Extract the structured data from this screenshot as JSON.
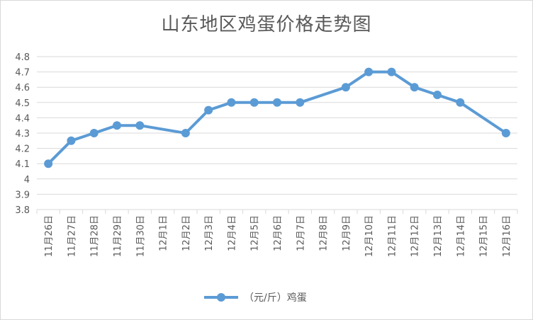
{
  "chart_data": {
    "type": "line",
    "title": "山东地区鸡蛋价格走势图",
    "categories": [
      "11月26日",
      "11月27日",
      "11月28日",
      "11月29日",
      "11月30日",
      "12月1日",
      "12月2日",
      "12月3日",
      "12月4日",
      "12月5日",
      "12月6日",
      "12月7日",
      "12月8日",
      "12月9日",
      "12月10日",
      "12月11日",
      "12月12日",
      "12月13日",
      "12月14日",
      "12月15日",
      "12月16日"
    ],
    "series": [
      {
        "name": "（元/斤）鸡蛋",
        "color": "#5b9bd5",
        "values": [
          4.1,
          4.25,
          4.3,
          4.35,
          4.35,
          null,
          4.3,
          4.45,
          4.5,
          4.5,
          4.5,
          4.5,
          null,
          4.6,
          4.7,
          4.7,
          4.6,
          4.55,
          4.5,
          null,
          4.3
        ]
      }
    ],
    "y_ticks": [
      "3.8",
      "3.9",
      "4",
      "4.1",
      "4.2",
      "4.3",
      "4.4",
      "4.5",
      "4.6",
      "4.7",
      "4.8"
    ],
    "ylim": [
      3.8,
      4.8
    ],
    "grid": true,
    "legend_position": "bottom"
  }
}
